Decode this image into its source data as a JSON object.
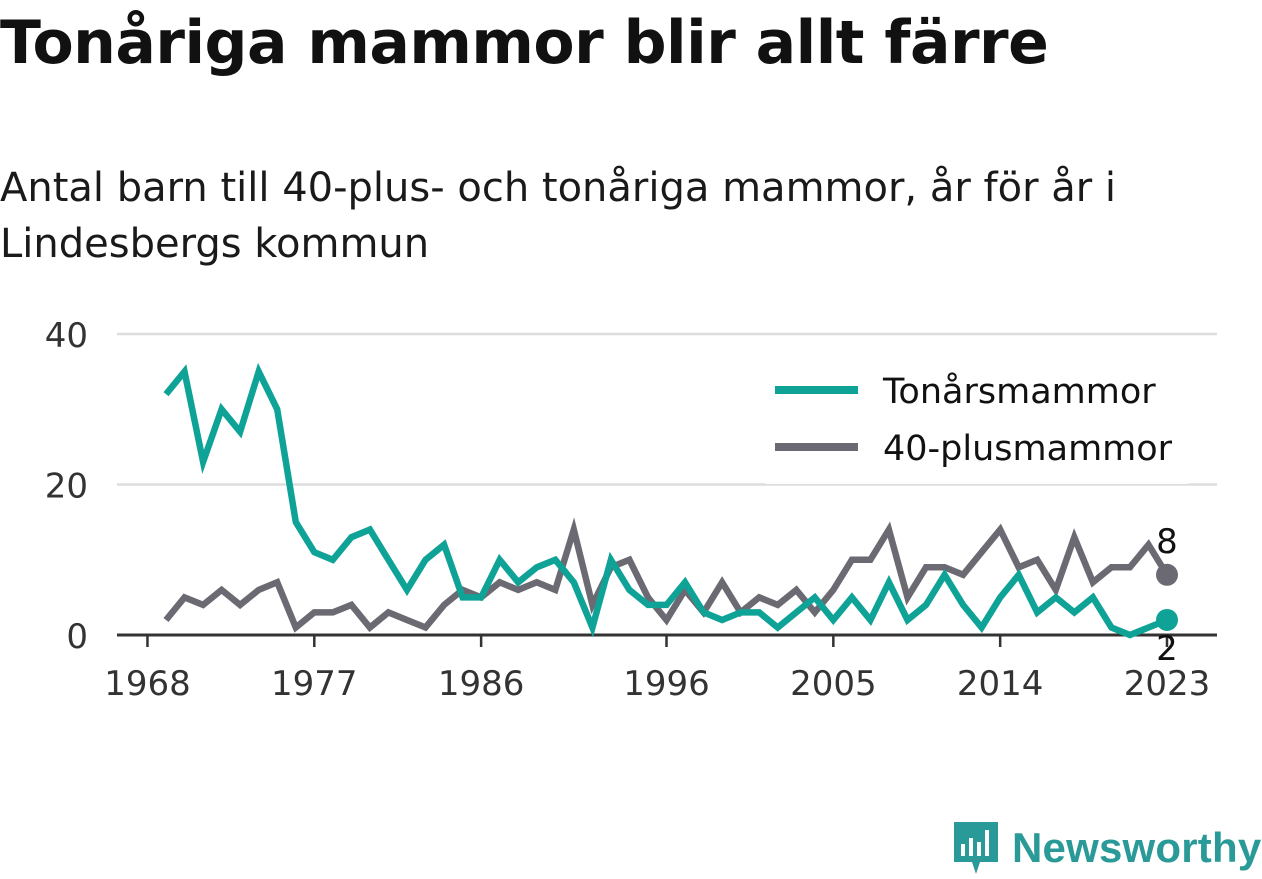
{
  "title": "Tonåriga mammor blir allt färre",
  "subtitle": "Antal barn till 40-plus- och tonåriga mammor, år för år i Lindesbergs kommun",
  "brand": "Newsworthy",
  "colors": {
    "teen": "#0fa397",
    "forty": "#6b6a73",
    "grid": "#dddddd",
    "axis": "#333333",
    "brand": "#2a9a98"
  },
  "chart_data": {
    "type": "line",
    "x": [
      1969,
      1970,
      1971,
      1972,
      1973,
      1974,
      1975,
      1976,
      1977,
      1978,
      1979,
      1980,
      1981,
      1982,
      1983,
      1984,
      1985,
      1986,
      1987,
      1988,
      1989,
      1990,
      1991,
      1992,
      1993,
      1994,
      1995,
      1996,
      1997,
      1998,
      1999,
      2000,
      2001,
      2002,
      2003,
      2004,
      2005,
      2006,
      2007,
      2008,
      2009,
      2010,
      2011,
      2012,
      2013,
      2014,
      2015,
      2016,
      2017,
      2018,
      2019,
      2020,
      2021,
      2022,
      2023
    ],
    "series": [
      {
        "name": "Tonårsmammor",
        "color": "#0fa397",
        "values": [
          32,
          35,
          23,
          30,
          27,
          35,
          30,
          15,
          11,
          10,
          13,
          14,
          10,
          6,
          10,
          12,
          5,
          5,
          10,
          7,
          9,
          10,
          7,
          1,
          10,
          6,
          4,
          4,
          7,
          3,
          2,
          3,
          3,
          1,
          3,
          5,
          2,
          5,
          2,
          7,
          2,
          4,
          8,
          4,
          1,
          5,
          8,
          3,
          5,
          3,
          5,
          1,
          0,
          1,
          2
        ]
      },
      {
        "name": "40-plusmammor",
        "color": "#6b6a73",
        "values": [
          2,
          5,
          4,
          6,
          4,
          6,
          7,
          1,
          3,
          3,
          4,
          1,
          3,
          2,
          1,
          4,
          6,
          5,
          7,
          6,
          7,
          6,
          14,
          4,
          9,
          10,
          5,
          2,
          6,
          3,
          7,
          3,
          5,
          4,
          6,
          3,
          6,
          10,
          10,
          14,
          5,
          9,
          9,
          8,
          11,
          14,
          9,
          10,
          6,
          13,
          7,
          9,
          9,
          12,
          8
        ]
      }
    ],
    "xticks": [
      "1968",
      "1977",
      "1986",
      "1996",
      "2005",
      "2014",
      "2023"
    ],
    "yticks": [
      "0",
      "20",
      "40"
    ],
    "ylim": [
      0,
      40
    ],
    "end_labels": {
      "Tonårsmammor": "2",
      "40-plusmammor": "8"
    },
    "legend": "top-right",
    "grid": true
  }
}
